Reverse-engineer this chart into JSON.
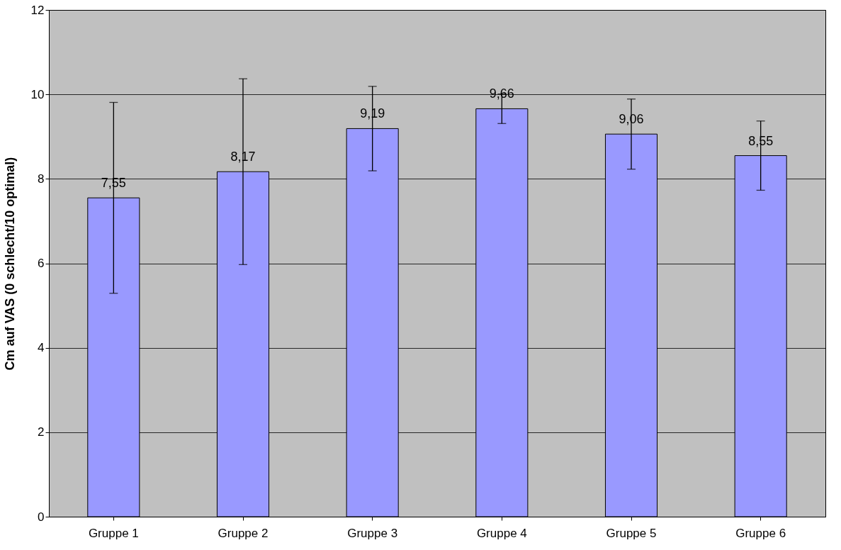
{
  "chart_data": {
    "type": "bar",
    "ylabel": "Cm auf VAS (0 schlecht/10 optimal)",
    "categories": [
      "Gruppe 1",
      "Gruppe 2",
      "Gruppe 3",
      "Gruppe 4",
      "Gruppe 5",
      "Gruppe 6"
    ],
    "values": [
      7.55,
      8.17,
      9.19,
      9.66,
      9.06,
      8.55
    ],
    "value_labels": [
      "7,55",
      "8,17",
      "9,19",
      "9,66",
      "9,06",
      "8,55"
    ],
    "errors": [
      2.26,
      2.2,
      1.0,
      0.35,
      0.83,
      0.82
    ],
    "color": "#9999ff",
    "ylim": [
      0,
      12
    ],
    "yticks": [
      0,
      2,
      4,
      6,
      8,
      10,
      12
    ],
    "grid": "y"
  }
}
